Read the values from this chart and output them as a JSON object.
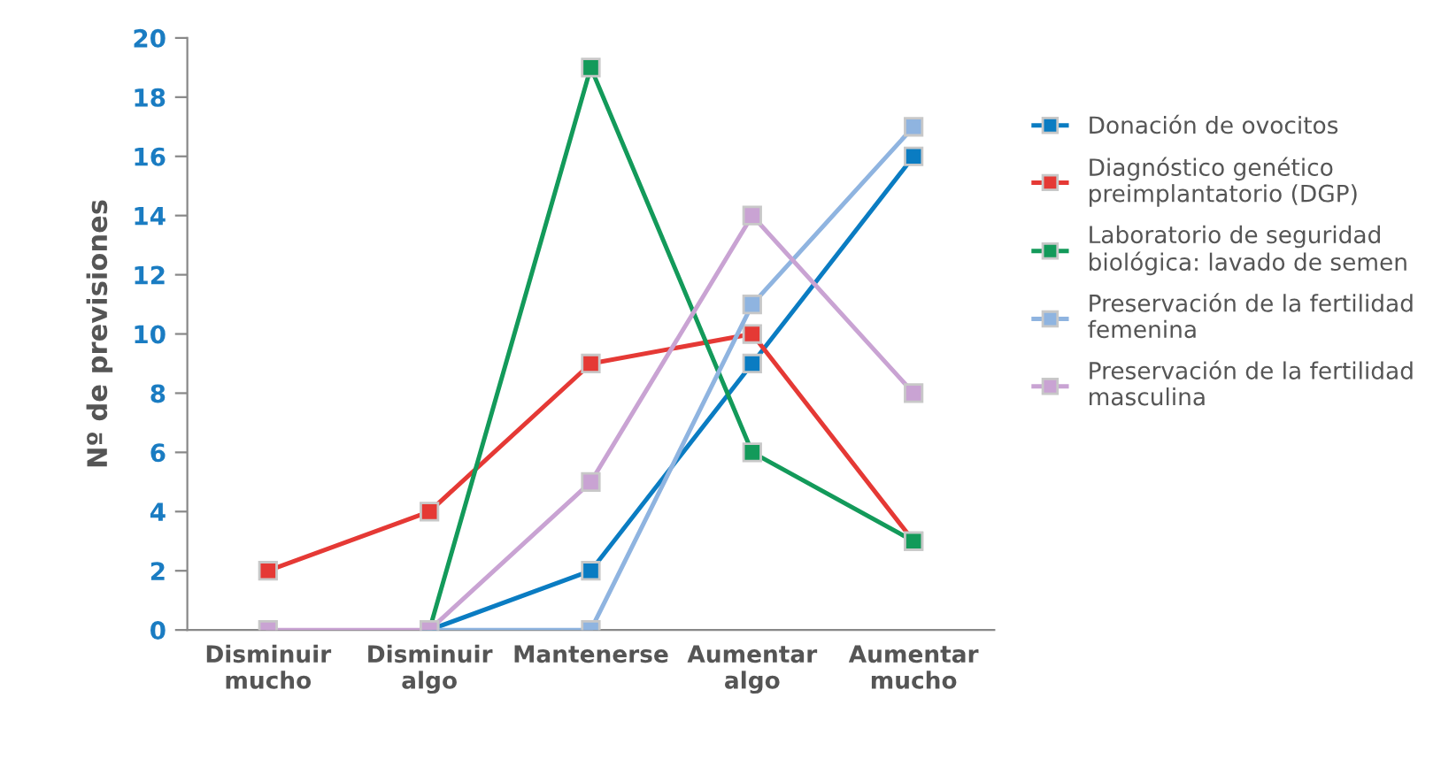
{
  "chart_data": {
    "type": "line",
    "ylabel": "Nº de previsiones",
    "categories": [
      "Disminuir\nmucho",
      "Disminuir\nalgo",
      "Mantenerse",
      "Aumentar\nalgo",
      "Aumentar\nmucho"
    ],
    "series": [
      {
        "name": "Donación de ovocitos",
        "color": "#0a7cc2",
        "values": [
          null,
          0,
          2,
          9,
          16
        ]
      },
      {
        "name": "Diagnóstico genético\npreimplantatorio (DGP)",
        "color": "#e53935",
        "values": [
          2,
          4,
          9,
          10,
          3
        ]
      },
      {
        "name": "Laboratorio de seguridad\nbiológica: lavado de semen",
        "color": "#139a5a",
        "values": [
          null,
          0,
          19,
          6,
          3
        ]
      },
      {
        "name": "Preservación de la fertilidad\nfemenina",
        "color": "#8fb4e0",
        "values": [
          null,
          0,
          0,
          11,
          17
        ]
      },
      {
        "name": "Preservación de la fertilidad\nmasculina",
        "color": "#c9a3d3",
        "values": [
          0,
          0,
          5,
          14,
          8
        ]
      }
    ],
    "ylim": [
      0,
      20
    ],
    "yticks": [
      0,
      2,
      4,
      6,
      8,
      10,
      12,
      14,
      16,
      18,
      20
    ],
    "grid": false,
    "legend": "right",
    "marker": "square",
    "line_style": "solid"
  }
}
